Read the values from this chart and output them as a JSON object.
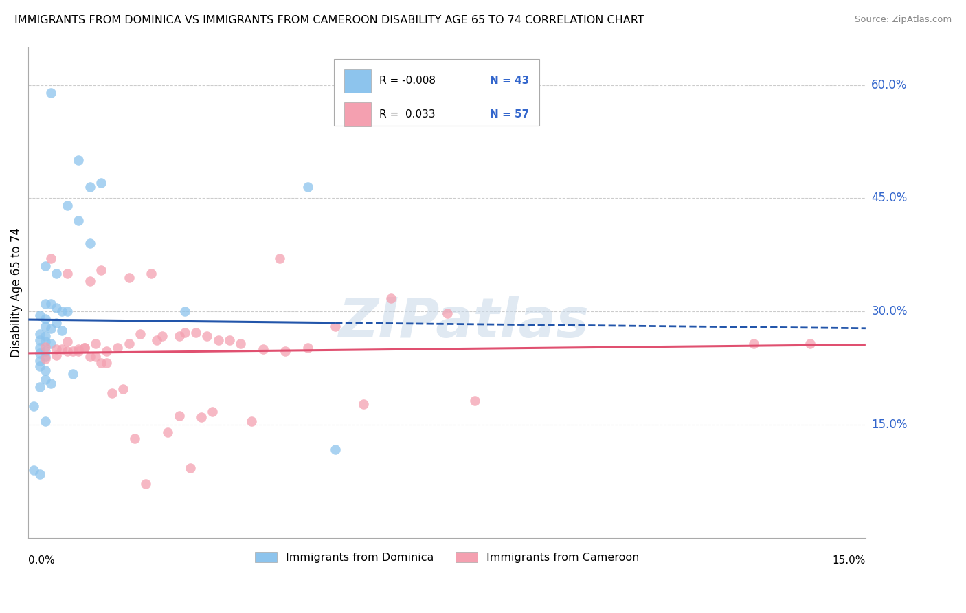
{
  "title": "IMMIGRANTS FROM DOMINICA VS IMMIGRANTS FROM CAMEROON DISABILITY AGE 65 TO 74 CORRELATION CHART",
  "source": "Source: ZipAtlas.com",
  "ylabel": "Disability Age 65 to 74",
  "xlim": [
    0.0,
    0.15
  ],
  "ylim": [
    0.0,
    0.65
  ],
  "ytick_vals": [
    0.15,
    0.3,
    0.45,
    0.6
  ],
  "ytick_labels": [
    "15.0%",
    "30.0%",
    "45.0%",
    "60.0%"
  ],
  "color_dominica": "#8DC4ED",
  "color_cameroon": "#F4A0B0",
  "color_dominica_line": "#2255AA",
  "color_cameroon_line": "#E05070",
  "color_axis_labels": "#3366CC",
  "legend_r_dominica": "R = -0.008",
  "legend_n_dominica": "N = 43",
  "legend_r_cameroon": "R =  0.033",
  "legend_n_cameroon": "N = 57",
  "watermark": "ZIPatlas",
  "label_dominica": "Immigrants from Dominica",
  "label_cameroon": "Immigrants from Cameroon",
  "dominica_x": [
    0.004,
    0.009,
    0.011,
    0.013,
    0.007,
    0.009,
    0.011,
    0.003,
    0.005,
    0.003,
    0.005,
    0.007,
    0.002,
    0.004,
    0.003,
    0.005,
    0.003,
    0.004,
    0.006,
    0.002,
    0.003,
    0.002,
    0.003,
    0.004,
    0.006,
    0.002,
    0.003,
    0.002,
    0.003,
    0.002,
    0.002,
    0.003,
    0.008,
    0.028,
    0.05,
    0.001,
    0.003,
    0.055,
    0.001,
    0.002,
    0.003,
    0.004,
    0.002
  ],
  "dominica_y": [
    0.59,
    0.5,
    0.465,
    0.47,
    0.44,
    0.42,
    0.39,
    0.36,
    0.35,
    0.31,
    0.305,
    0.3,
    0.295,
    0.31,
    0.29,
    0.285,
    0.28,
    0.278,
    0.275,
    0.27,
    0.268,
    0.262,
    0.26,
    0.258,
    0.3,
    0.252,
    0.248,
    0.245,
    0.24,
    0.235,
    0.228,
    0.222,
    0.218,
    0.3,
    0.465,
    0.175,
    0.155,
    0.118,
    0.09,
    0.2,
    0.21,
    0.205,
    0.085
  ],
  "cameroon_x": [
    0.004,
    0.007,
    0.011,
    0.013,
    0.018,
    0.022,
    0.027,
    0.032,
    0.036,
    0.045,
    0.055,
    0.065,
    0.075,
    0.13,
    0.003,
    0.005,
    0.007,
    0.009,
    0.01,
    0.012,
    0.014,
    0.016,
    0.018,
    0.02,
    0.024,
    0.028,
    0.03,
    0.034,
    0.038,
    0.042,
    0.046,
    0.05,
    0.003,
    0.005,
    0.007,
    0.009,
    0.011,
    0.013,
    0.015,
    0.017,
    0.019,
    0.021,
    0.023,
    0.025,
    0.027,
    0.029,
    0.031,
    0.033,
    0.06,
    0.08,
    0.04,
    0.006,
    0.008,
    0.01,
    0.012,
    0.014,
    0.14
  ],
  "cameroon_y": [
    0.37,
    0.35,
    0.34,
    0.355,
    0.345,
    0.35,
    0.268,
    0.268,
    0.262,
    0.37,
    0.28,
    0.318,
    0.298,
    0.258,
    0.253,
    0.25,
    0.26,
    0.248,
    0.252,
    0.258,
    0.248,
    0.252,
    0.258,
    0.27,
    0.268,
    0.272,
    0.272,
    0.262,
    0.258,
    0.25,
    0.248,
    0.252,
    0.238,
    0.242,
    0.248,
    0.25,
    0.24,
    0.232,
    0.192,
    0.198,
    0.132,
    0.072,
    0.262,
    0.14,
    0.162,
    0.093,
    0.16,
    0.168,
    0.178,
    0.182,
    0.155,
    0.25,
    0.248,
    0.252,
    0.24,
    0.232,
    0.258
  ]
}
